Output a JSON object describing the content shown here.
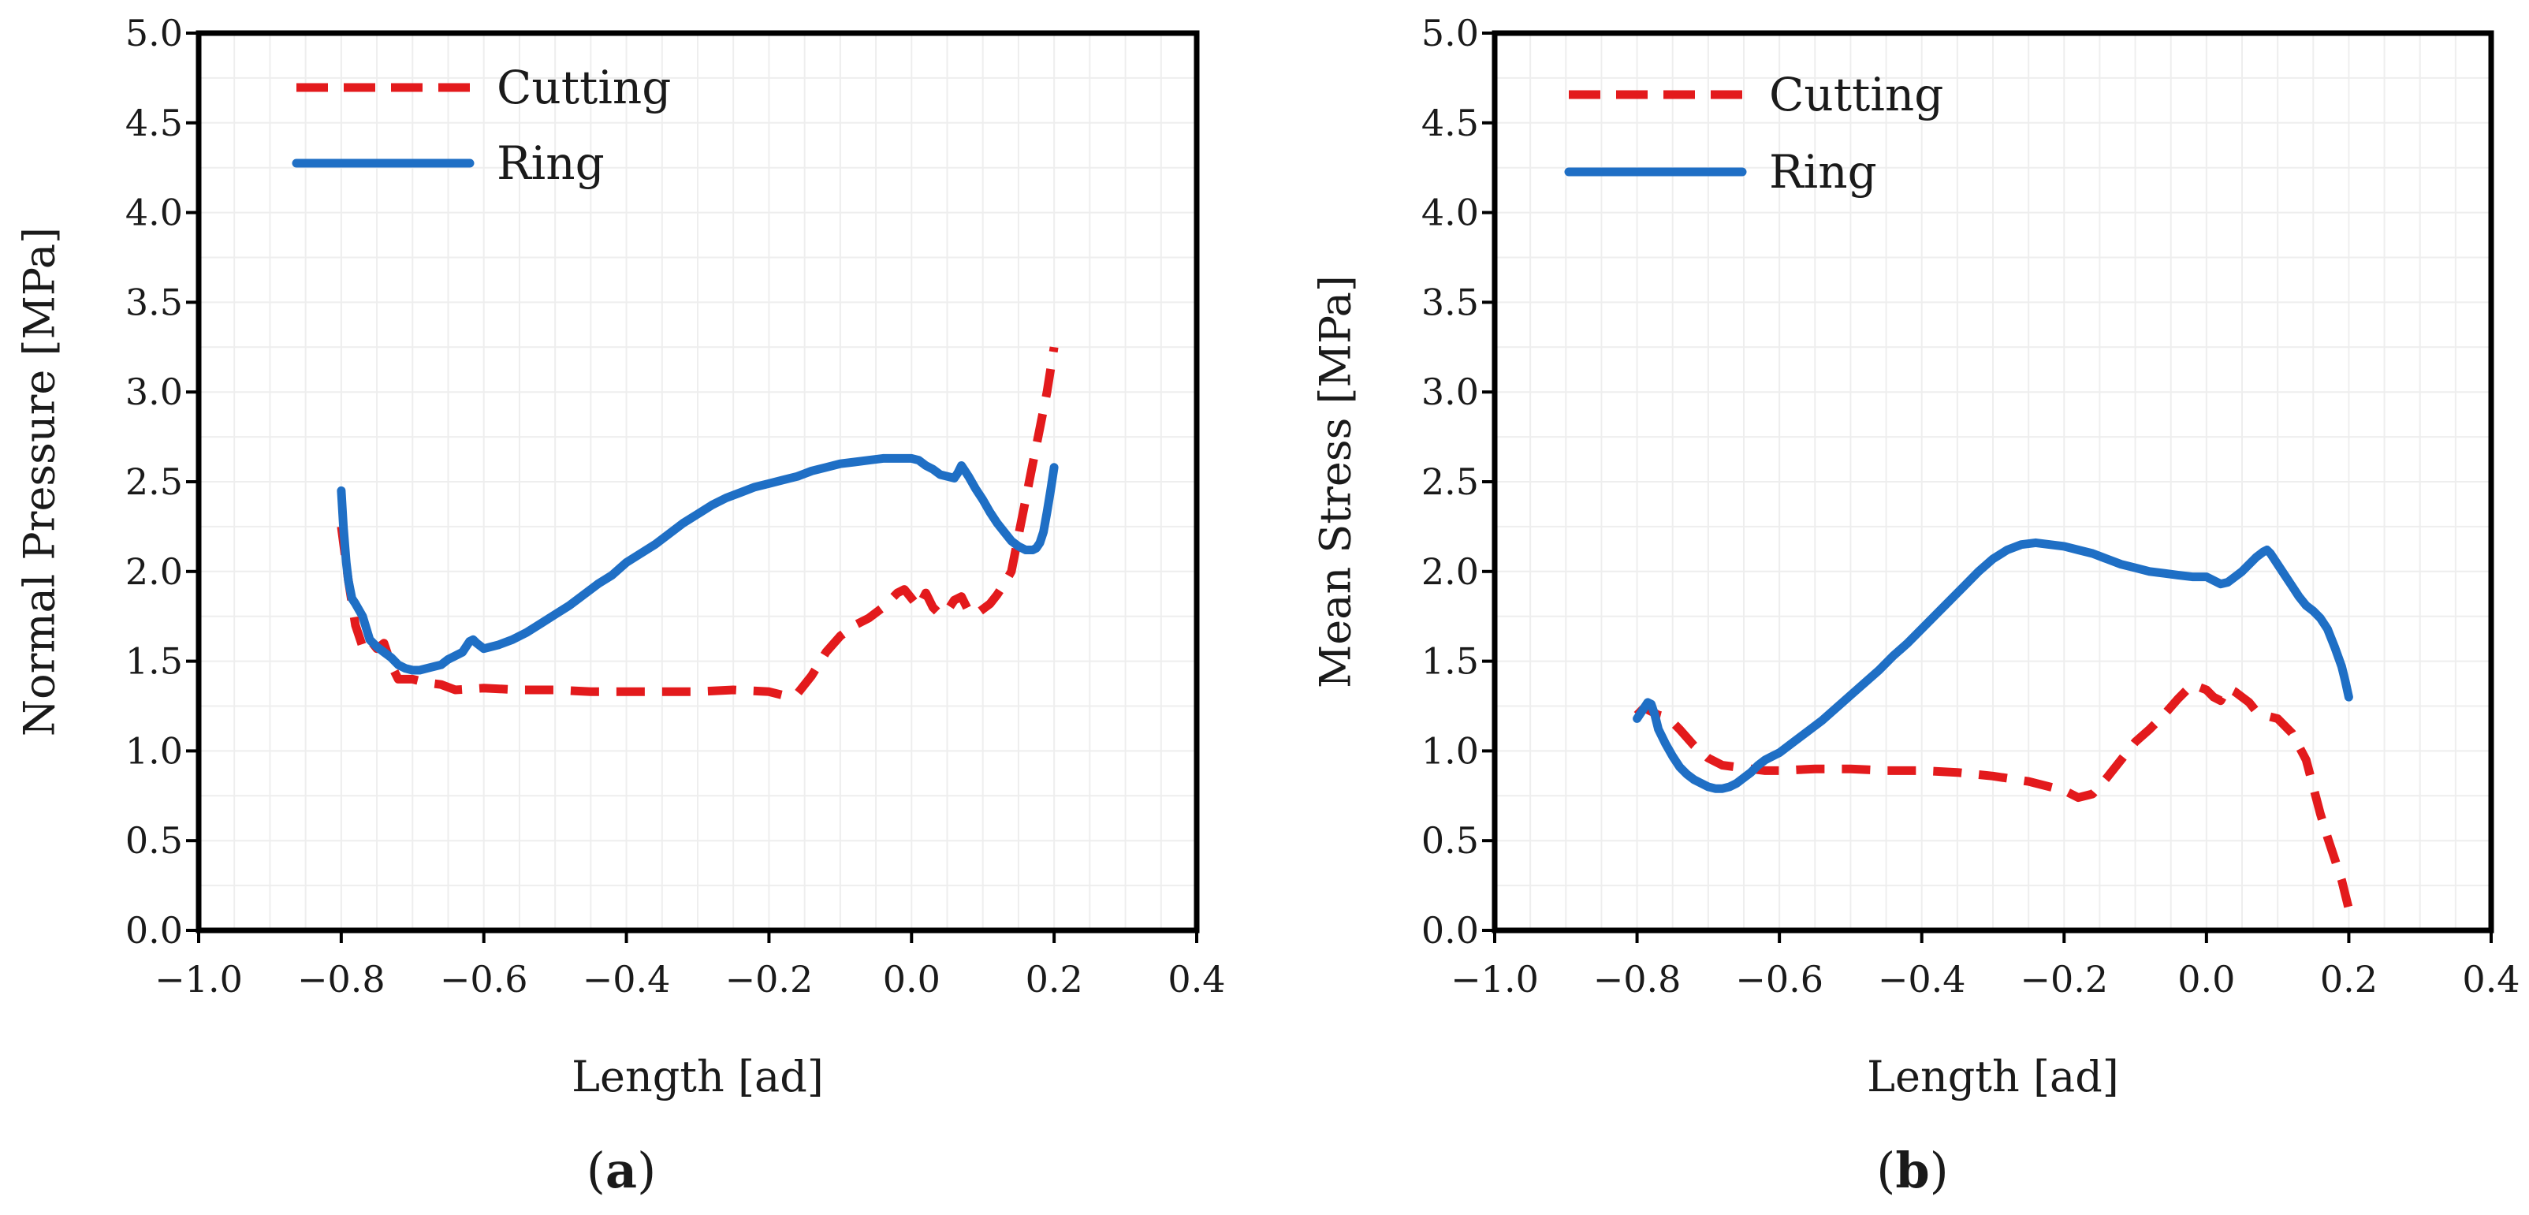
{
  "chart_data": [
    {
      "type": "line",
      "panel": "a",
      "caption": "a",
      "xlabel": "Length [ad]",
      "ylabel": "Normal Pressure [MPa]",
      "xlim": [
        -1.0,
        0.4
      ],
      "ylim": [
        0.0,
        5.0
      ],
      "xticks": [
        -1.0,
        -0.8,
        -0.6,
        -0.4,
        -0.2,
        0.0,
        0.2,
        0.4
      ],
      "xtick_labels": [
        "−1.0",
        "−0.8",
        "−0.6",
        "−0.4",
        "−0.2",
        "0.0",
        "0.2",
        "0.4"
      ],
      "yticks": [
        0.0,
        0.5,
        1.0,
        1.5,
        2.0,
        2.5,
        3.0,
        3.5,
        4.0,
        4.5,
        5.0
      ],
      "ytick_labels": [
        "0.0",
        "0.5",
        "1.0",
        "1.5",
        "2.0",
        "2.5",
        "3.0",
        "3.5",
        "4.0",
        "4.5",
        "5.0"
      ],
      "grid": true,
      "legend_position": "top-left",
      "series": [
        {
          "name": "Cutting",
          "style": "dashed",
          "color": "#e31a1c",
          "x": [
            -0.8,
            -0.79,
            -0.78,
            -0.77,
            -0.76,
            -0.75,
            -0.74,
            -0.73,
            -0.72,
            -0.7,
            -0.68,
            -0.66,
            -0.64,
            -0.6,
            -0.55,
            -0.5,
            -0.45,
            -0.4,
            -0.35,
            -0.3,
            -0.25,
            -0.2,
            -0.18,
            -0.16,
            -0.14,
            -0.12,
            -0.1,
            -0.08,
            -0.06,
            -0.04,
            -0.02,
            -0.01,
            0.0,
            0.01,
            0.02,
            0.03,
            0.04,
            0.05,
            0.06,
            0.07,
            0.08,
            0.09,
            0.1,
            0.11,
            0.12,
            0.13,
            0.14,
            0.15,
            0.16,
            0.17,
            0.18,
            0.19,
            0.2
          ],
          "y": [
            2.25,
            1.95,
            1.7,
            1.58,
            1.62,
            1.57,
            1.6,
            1.48,
            1.4,
            1.4,
            1.38,
            1.37,
            1.34,
            1.35,
            1.34,
            1.34,
            1.33,
            1.33,
            1.33,
            1.33,
            1.34,
            1.33,
            1.31,
            1.32,
            1.42,
            1.55,
            1.64,
            1.7,
            1.74,
            1.8,
            1.88,
            1.9,
            1.85,
            1.8,
            1.88,
            1.8,
            1.76,
            1.78,
            1.84,
            1.86,
            1.78,
            1.76,
            1.79,
            1.82,
            1.87,
            1.93,
            2.0,
            2.2,
            2.4,
            2.6,
            2.8,
            3.0,
            3.25
          ]
        },
        {
          "name": "Ring",
          "style": "solid",
          "color": "#1f6fc5",
          "x": [
            -0.8,
            -0.797,
            -0.793,
            -0.79,
            -0.785,
            -0.78,
            -0.77,
            -0.76,
            -0.75,
            -0.74,
            -0.73,
            -0.72,
            -0.71,
            -0.7,
            -0.69,
            -0.68,
            -0.67,
            -0.66,
            -0.65,
            -0.64,
            -0.63,
            -0.62,
            -0.615,
            -0.61,
            -0.6,
            -0.58,
            -0.56,
            -0.54,
            -0.52,
            -0.5,
            -0.48,
            -0.46,
            -0.44,
            -0.42,
            -0.4,
            -0.38,
            -0.36,
            -0.34,
            -0.32,
            -0.3,
            -0.28,
            -0.26,
            -0.24,
            -0.22,
            -0.2,
            -0.18,
            -0.16,
            -0.14,
            -0.12,
            -0.1,
            -0.08,
            -0.06,
            -0.04,
            -0.02,
            0.0,
            0.01,
            0.02,
            0.03,
            0.04,
            0.05,
            0.06,
            0.065,
            0.07,
            0.075,
            0.08,
            0.09,
            0.1,
            0.11,
            0.12,
            0.13,
            0.14,
            0.15,
            0.16,
            0.17,
            0.175,
            0.18,
            0.185,
            0.19,
            0.195,
            0.2
          ],
          "y": [
            2.45,
            2.25,
            2.05,
            1.95,
            1.85,
            1.82,
            1.75,
            1.62,
            1.58,
            1.55,
            1.52,
            1.48,
            1.46,
            1.45,
            1.45,
            1.46,
            1.47,
            1.48,
            1.51,
            1.53,
            1.55,
            1.61,
            1.62,
            1.6,
            1.57,
            1.59,
            1.62,
            1.66,
            1.71,
            1.76,
            1.81,
            1.87,
            1.93,
            1.98,
            2.05,
            2.1,
            2.15,
            2.21,
            2.27,
            2.32,
            2.37,
            2.41,
            2.44,
            2.47,
            2.49,
            2.51,
            2.53,
            2.56,
            2.58,
            2.6,
            2.61,
            2.62,
            2.63,
            2.63,
            2.63,
            2.62,
            2.59,
            2.57,
            2.54,
            2.53,
            2.52,
            2.55,
            2.59,
            2.56,
            2.53,
            2.46,
            2.4,
            2.33,
            2.27,
            2.22,
            2.17,
            2.14,
            2.12,
            2.12,
            2.13,
            2.16,
            2.22,
            2.33,
            2.45,
            2.58
          ]
        }
      ]
    },
    {
      "type": "line",
      "panel": "b",
      "caption": "b",
      "xlabel": "Length [ad]",
      "ylabel": "Mean Stress [MPa]",
      "xlim": [
        -1.0,
        0.4
      ],
      "ylim": [
        0.0,
        5.0
      ],
      "xticks": [
        -1.0,
        -0.8,
        -0.6,
        -0.4,
        -0.2,
        0.0,
        0.2,
        0.4
      ],
      "xtick_labels": [
        "−1.0",
        "−0.8",
        "−0.6",
        "−0.4",
        "−0.2",
        "0.0",
        "0.2",
        "0.4"
      ],
      "yticks": [
        0.0,
        0.5,
        1.0,
        1.5,
        2.0,
        2.5,
        3.0,
        3.5,
        4.0,
        4.5,
        5.0
      ],
      "ytick_labels": [
        "0.0",
        "0.5",
        "1.0",
        "1.5",
        "2.0",
        "2.5",
        "3.0",
        "3.5",
        "4.0",
        "4.5",
        "5.0"
      ],
      "grid": true,
      "legend_position": "top-left",
      "series": [
        {
          "name": "Cutting",
          "style": "dashed",
          "color": "#e31a1c",
          "x": [
            -0.8,
            -0.79,
            -0.78,
            -0.77,
            -0.76,
            -0.75,
            -0.74,
            -0.72,
            -0.7,
            -0.68,
            -0.66,
            -0.64,
            -0.62,
            -0.6,
            -0.55,
            -0.5,
            -0.45,
            -0.4,
            -0.35,
            -0.3,
            -0.25,
            -0.2,
            -0.18,
            -0.16,
            -0.14,
            -0.12,
            -0.1,
            -0.08,
            -0.06,
            -0.04,
            -0.02,
            0.0,
            0.01,
            0.02,
            0.03,
            0.04,
            0.05,
            0.06,
            0.07,
            0.08,
            0.1,
            0.12,
            0.14,
            0.15,
            0.16,
            0.17,
            0.18,
            0.19,
            0.2
          ],
          "y": [
            1.2,
            1.24,
            1.22,
            1.2,
            1.19,
            1.16,
            1.12,
            1.03,
            0.96,
            0.92,
            0.91,
            0.9,
            0.89,
            0.89,
            0.9,
            0.9,
            0.89,
            0.89,
            0.88,
            0.86,
            0.83,
            0.78,
            0.74,
            0.76,
            0.85,
            0.95,
            1.05,
            1.12,
            1.2,
            1.29,
            1.37,
            1.34,
            1.3,
            1.28,
            1.35,
            1.33,
            1.3,
            1.27,
            1.22,
            1.2,
            1.18,
            1.1,
            0.95,
            0.8,
            0.65,
            0.52,
            0.4,
            0.28,
            0.12
          ]
        },
        {
          "name": "Ring",
          "style": "solid",
          "color": "#1f6fc5",
          "x": [
            -0.8,
            -0.795,
            -0.79,
            -0.785,
            -0.78,
            -0.775,
            -0.77,
            -0.76,
            -0.75,
            -0.74,
            -0.73,
            -0.72,
            -0.71,
            -0.7,
            -0.69,
            -0.68,
            -0.67,
            -0.66,
            -0.65,
            -0.64,
            -0.63,
            -0.62,
            -0.61,
            -0.6,
            -0.58,
            -0.56,
            -0.54,
            -0.52,
            -0.5,
            -0.48,
            -0.46,
            -0.44,
            -0.42,
            -0.4,
            -0.38,
            -0.36,
            -0.34,
            -0.32,
            -0.3,
            -0.28,
            -0.26,
            -0.24,
            -0.22,
            -0.2,
            -0.18,
            -0.16,
            -0.14,
            -0.12,
            -0.1,
            -0.08,
            -0.06,
            -0.04,
            -0.02,
            0.0,
            0.01,
            0.02,
            0.03,
            0.04,
            0.05,
            0.06,
            0.07,
            0.08,
            0.085,
            0.09,
            0.1,
            0.11,
            0.12,
            0.13,
            0.14,
            0.15,
            0.16,
            0.17,
            0.18,
            0.19,
            0.195,
            0.2
          ],
          "y": [
            1.18,
            1.21,
            1.24,
            1.27,
            1.26,
            1.2,
            1.12,
            1.04,
            0.97,
            0.91,
            0.87,
            0.84,
            0.82,
            0.8,
            0.79,
            0.79,
            0.8,
            0.82,
            0.85,
            0.88,
            0.92,
            0.95,
            0.97,
            0.99,
            1.05,
            1.11,
            1.17,
            1.24,
            1.31,
            1.38,
            1.45,
            1.53,
            1.6,
            1.68,
            1.76,
            1.84,
            1.92,
            2.0,
            2.07,
            2.12,
            2.15,
            2.16,
            2.15,
            2.14,
            2.12,
            2.1,
            2.07,
            2.04,
            2.02,
            2.0,
            1.99,
            1.98,
            1.97,
            1.97,
            1.95,
            1.93,
            1.94,
            1.97,
            2.0,
            2.04,
            2.08,
            2.11,
            2.12,
            2.1,
            2.04,
            1.98,
            1.92,
            1.86,
            1.81,
            1.78,
            1.74,
            1.68,
            1.58,
            1.47,
            1.39,
            1.3
          ]
        }
      ]
    }
  ]
}
